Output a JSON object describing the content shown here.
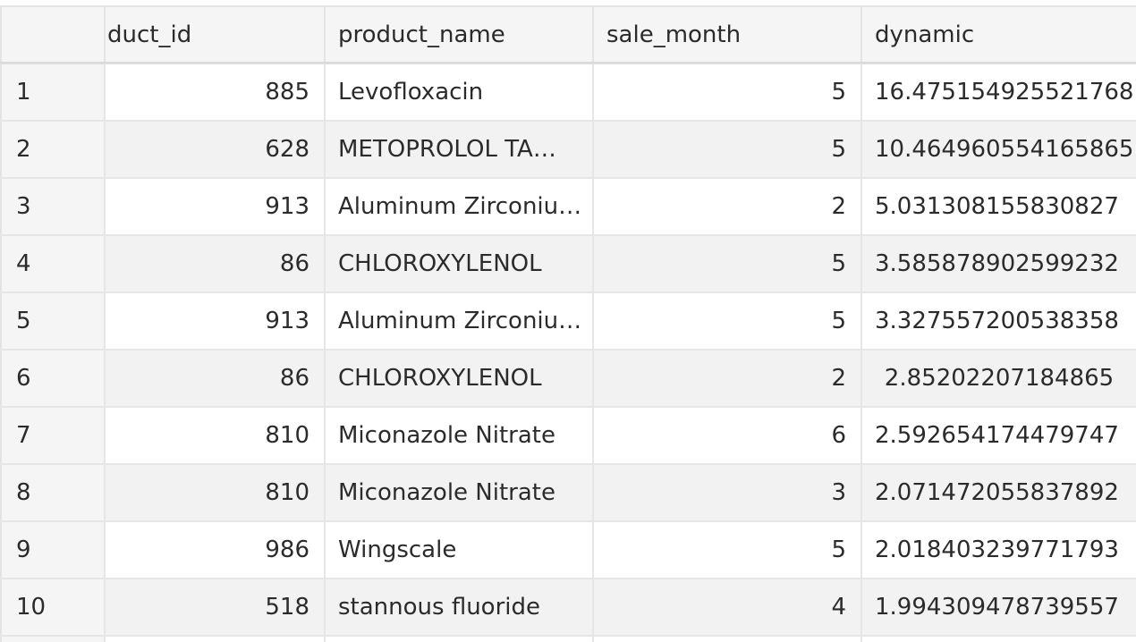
{
  "columns": {
    "index": "",
    "product_id": "duct_id",
    "product_name": "product_name",
    "sale_month": "sale_month",
    "dynamic": "dynamic"
  },
  "rows": [
    {
      "index": "1",
      "product_id": "885",
      "product_name": "Levofloxacin",
      "sale_month": "5",
      "dynamic": "16.475154925521768"
    },
    {
      "index": "2",
      "product_id": "628",
      "product_name": "METOPROLOL TA…",
      "sale_month": "5",
      "dynamic": "10.464960554165865"
    },
    {
      "index": "3",
      "product_id": "913",
      "product_name": "Aluminum Zirconiu…",
      "sale_month": "2",
      "dynamic": "5.031308155830827"
    },
    {
      "index": "4",
      "product_id": "86",
      "product_name": "CHLOROXYLENOL",
      "sale_month": "5",
      "dynamic": "3.585878902599232"
    },
    {
      "index": "5",
      "product_id": "913",
      "product_name": "Aluminum Zirconiu…",
      "sale_month": "5",
      "dynamic": "3.327557200538358"
    },
    {
      "index": "6",
      "product_id": "86",
      "product_name": "CHLOROXYLENOL",
      "sale_month": "2",
      "dynamic": "2.85202207184865"
    },
    {
      "index": "7",
      "product_id": "810",
      "product_name": "Miconazole Nitrate",
      "sale_month": "6",
      "dynamic": "2.592654174479747"
    },
    {
      "index": "8",
      "product_id": "810",
      "product_name": "Miconazole Nitrate",
      "sale_month": "3",
      "dynamic": "2.071472055837892"
    },
    {
      "index": "9",
      "product_id": "986",
      "product_name": "Wingscale",
      "sale_month": "5",
      "dynamic": "2.018403239771793"
    },
    {
      "index": "10",
      "product_id": "518",
      "product_name": "stannous fluoride",
      "sale_month": "4",
      "dynamic": "1.994309478739557"
    }
  ]
}
